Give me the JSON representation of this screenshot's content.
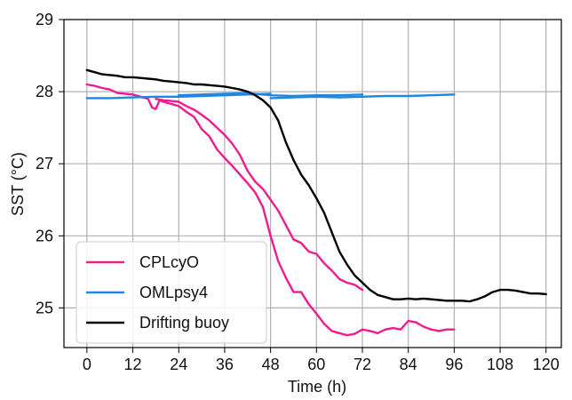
{
  "chart_data": {
    "type": "line",
    "xlabel": "Time (h)",
    "ylabel": "SST (°C)",
    "xlim": [
      -6,
      124
    ],
    "ylim": [
      24.45,
      29
    ],
    "xticks": [
      0,
      12,
      24,
      36,
      48,
      60,
      72,
      84,
      96,
      108,
      120
    ],
    "yticks": [
      25,
      26,
      27,
      28,
      29
    ],
    "grid": true,
    "legend_position": "bottom-left",
    "series": [
      {
        "name": "CPLcyO",
        "color": "#ee1c8e",
        "segments": [
          {
            "x": [
              0,
              2,
              4,
              6,
              8,
              10,
              12,
              14,
              16,
              17,
              18,
              19,
              20,
              22,
              24,
              26,
              28,
              30,
              32,
              34,
              36,
              38,
              40,
              42,
              44,
              46,
              48
            ],
            "y": [
              28.1,
              28.08,
              28.05,
              28.03,
              27.98,
              27.97,
              27.96,
              27.93,
              27.9,
              27.78,
              27.76,
              27.88,
              27.86,
              27.83,
              27.8,
              27.72,
              27.65,
              27.48,
              27.38,
              27.2,
              27.08,
              26.97,
              26.85,
              26.73,
              26.6,
              26.4,
              26.0
            ]
          },
          {
            "x": [
              48,
              50,
              52,
              54,
              56,
              58,
              60,
              62,
              64,
              66,
              68,
              70,
              72,
              74,
              76,
              78,
              80,
              82,
              84,
              86,
              88,
              90,
              92,
              94,
              96
            ],
            "y": [
              26.0,
              25.65,
              25.42,
              25.22,
              25.22,
              25.05,
              24.92,
              24.78,
              24.68,
              24.65,
              24.62,
              24.64,
              24.7,
              24.68,
              24.65,
              24.7,
              24.72,
              24.7,
              24.82,
              24.8,
              24.74,
              24.7,
              24.68,
              24.7,
              24.7
            ]
          },
          {
            "x": [
              18,
              20,
              22,
              24,
              26,
              28,
              30,
              32,
              34,
              36,
              38,
              40,
              42,
              44,
              46,
              48,
              50,
              52,
              54,
              56,
              58,
              60,
              62,
              64,
              66,
              68,
              70,
              72
            ],
            "y": [
              27.9,
              27.88,
              27.87,
              27.86,
              27.8,
              27.75,
              27.68,
              27.6,
              27.5,
              27.4,
              27.28,
              27.12,
              26.9,
              26.75,
              26.65,
              26.5,
              26.35,
              26.15,
              25.95,
              25.9,
              25.78,
              25.75,
              25.62,
              25.52,
              25.4,
              25.35,
              25.32,
              25.25
            ]
          }
        ]
      },
      {
        "name": "OMLpsy4",
        "color": "#1f87e0",
        "segments": [
          {
            "x": [
              0,
              6,
              12,
              18,
              24,
              30,
              36,
              42,
              48
            ],
            "y": [
              27.91,
              27.91,
              27.92,
              27.93,
              27.93,
              27.94,
              27.95,
              27.96,
              27.97
            ]
          },
          {
            "x": [
              24,
              30,
              36,
              42,
              48,
              54,
              60,
              66,
              72
            ],
            "y": [
              27.95,
              27.96,
              27.97,
              27.98,
              27.95,
              27.94,
              27.95,
              27.95,
              27.96
            ]
          },
          {
            "x": [
              48,
              54,
              60,
              66,
              72,
              78,
              84,
              90,
              96
            ],
            "y": [
              27.91,
              27.92,
              27.93,
              27.92,
              27.93,
              27.94,
              27.94,
              27.95,
              27.96
            ]
          }
        ]
      },
      {
        "name": "Drifting buoy",
        "color": "#000000",
        "segments": [
          {
            "x": [
              0,
              2,
              4,
              6,
              8,
              10,
              12,
              14,
              16,
              18,
              20,
              22,
              24,
              26,
              28,
              30,
              32,
              34,
              36,
              38,
              40,
              42,
              44,
              46,
              48,
              50,
              52,
              54,
              56,
              58,
              60,
              62,
              64,
              66,
              68,
              70,
              72,
              74,
              76,
              78,
              80,
              82,
              84,
              86,
              88,
              90,
              92,
              94,
              96,
              98,
              100,
              102,
              104,
              106,
              108,
              110,
              112,
              114,
              116,
              118,
              120
            ],
            "y": [
              28.3,
              28.27,
              28.24,
              28.23,
              28.22,
              28.2,
              28.2,
              28.19,
              28.18,
              28.17,
              28.15,
              28.14,
              28.13,
              28.12,
              28.1,
              28.1,
              28.09,
              28.08,
              28.07,
              28.05,
              28.03,
              28.0,
              27.95,
              27.88,
              27.78,
              27.6,
              27.3,
              27.05,
              26.85,
              26.7,
              26.52,
              26.32,
              26.05,
              25.78,
              25.6,
              25.45,
              25.35,
              25.25,
              25.18,
              25.15,
              25.12,
              25.12,
              25.13,
              25.12,
              25.13,
              25.12,
              25.11,
              25.1,
              25.1,
              25.1,
              25.09,
              25.12,
              25.16,
              25.22,
              25.25,
              25.25,
              25.24,
              25.22,
              25.2,
              25.2,
              25.19
            ]
          }
        ]
      }
    ]
  }
}
